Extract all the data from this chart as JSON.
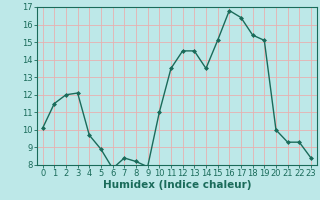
{
  "xlabel": "Humidex (Indice chaleur)",
  "x": [
    0,
    1,
    2,
    3,
    4,
    5,
    6,
    7,
    8,
    9,
    10,
    11,
    12,
    13,
    14,
    15,
    16,
    17,
    18,
    19,
    20,
    21,
    22,
    23
  ],
  "y": [
    10.1,
    11.5,
    12.0,
    12.1,
    9.7,
    8.9,
    7.8,
    8.4,
    8.2,
    7.9,
    11.0,
    13.5,
    14.5,
    14.5,
    13.5,
    15.1,
    16.8,
    16.4,
    15.4,
    15.1,
    10.0,
    9.3,
    9.3,
    8.4
  ],
  "line_color": "#1a6b5a",
  "bg_color": "#bde8e8",
  "grid_color": "#e8b0b0",
  "ylim": [
    8,
    17
  ],
  "yticks": [
    8,
    9,
    10,
    11,
    12,
    13,
    14,
    15,
    16,
    17
  ],
  "xticks": [
    0,
    1,
    2,
    3,
    4,
    5,
    6,
    7,
    8,
    9,
    10,
    11,
    12,
    13,
    14,
    15,
    16,
    17,
    18,
    19,
    20,
    21,
    22,
    23
  ],
  "tick_fontsize": 6.0,
  "xlabel_fontsize": 7.5
}
